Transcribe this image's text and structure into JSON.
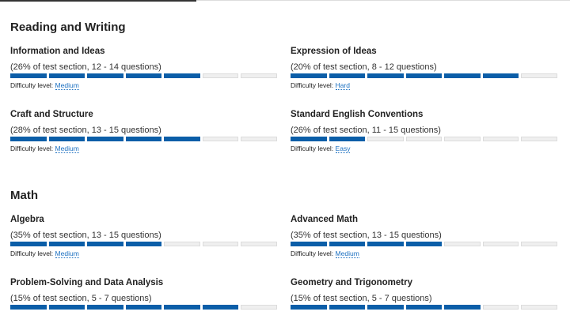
{
  "sections": [
    {
      "title": "Reading and Writing",
      "items": [
        {
          "title": "Information and Ideas",
          "subtitle": "(26% of test section, 12 - 14 questions)",
          "filled": 5,
          "total": 7,
          "difficulty_label": "Difficulty level:",
          "difficulty": "Medium"
        },
        {
          "title": "Expression of Ideas",
          "subtitle": "(20% of test section, 8 - 12 questions)",
          "filled": 6,
          "total": 7,
          "difficulty_label": "Difficulty level:",
          "difficulty": "Hard"
        },
        {
          "title": "Craft and Structure",
          "subtitle": "(28% of test section, 13 - 15 questions)",
          "filled": 5,
          "total": 7,
          "difficulty_label": "Difficulty level:",
          "difficulty": "Medium"
        },
        {
          "title": "Standard English Conventions",
          "subtitle": "(26% of test section, 11 - 15 questions)",
          "filled": 2,
          "total": 7,
          "difficulty_label": "Difficulty level:",
          "difficulty": "Easy"
        }
      ]
    },
    {
      "title": "Math",
      "items": [
        {
          "title": "Algebra",
          "subtitle": "(35% of test section, 13 - 15 questions)",
          "filled": 4,
          "total": 7,
          "difficulty_label": "Difficulty level:",
          "difficulty": "Medium"
        },
        {
          "title": "Advanced Math",
          "subtitle": "(35% of test section, 13 - 15 questions)",
          "filled": 4,
          "total": 7,
          "difficulty_label": "Difficulty level:",
          "difficulty": "Medium"
        },
        {
          "title": "Problem-Solving and Data Analysis",
          "subtitle": "(15% of test section, 5 - 7 questions)",
          "filled": 6,
          "total": 7
        },
        {
          "title": "Geometry and Trigonometry",
          "subtitle": "(15% of test section, 5 - 7 questions)",
          "filled": 5,
          "total": 7
        }
      ]
    }
  ]
}
